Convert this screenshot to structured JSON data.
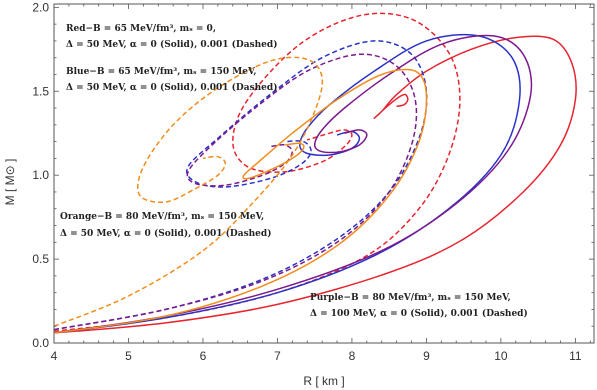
{
  "chart_data": {
    "type": "line",
    "xlabel": "R [ km ]",
    "ylabel": "M [ M⊙ ]",
    "xlim": [
      4,
      11.25
    ],
    "ylim": [
      0,
      2.02
    ],
    "xticks": [
      "4",
      "5",
      "6",
      "7",
      "8",
      "9",
      "10",
      "11"
    ],
    "yticks": [
      "0.0",
      "0.5",
      "1.0",
      "1.5",
      "2.0"
    ],
    "grid": false,
    "colors": {
      "red": "#e8242f",
      "blue": "#2a32c8",
      "orange": "#f28c1c",
      "purple": "#7b1a8e"
    },
    "annotations": [
      {
        "key": "red",
        "line1": "Red−B = 65 MeV/fm³, mₛ = 0,",
        "line2": "Δ = 50 MeV, α = 0 (Solid), 0.001 (Dashed)"
      },
      {
        "key": "blue",
        "line1": "Blue−B = 65 MeV/fm³, mₛ = 150 MeV,",
        "line2": "Δ = 50 MeV, α = 0 (Solid), 0.001 (Dashed)"
      },
      {
        "key": "orange",
        "line1": "Orange−B = 80 MeV/fm³, mₛ = 150 MeV,",
        "line2": "Δ = 50 MeV, α = 0 (Solid), 0.001 (Dashed)"
      },
      {
        "key": "purple",
        "line1": "Purple−B = 80 MeV/fm³, mₛ = 150 MeV,",
        "line2": "Δ = 100 MeV, α = 0 (Solid), 0.001 (Dashed)"
      }
    ],
    "series": [
      {
        "color": "red",
        "style": "solid",
        "x": [
          4.0,
          5.5,
          7.0,
          8.5,
          9.5,
          10.3,
          10.8,
          11.0,
          10.95,
          10.7,
          10.2,
          9.6,
          9.0,
          8.6,
          8.4,
          8.3,
          8.35,
          8.5,
          8.65,
          8.72,
          8.75,
          8.7,
          8.6
        ],
        "y": [
          0.06,
          0.12,
          0.23,
          0.42,
          0.62,
          0.9,
          1.18,
          1.45,
          1.67,
          1.81,
          1.82,
          1.75,
          1.62,
          1.48,
          1.38,
          1.34,
          1.36,
          1.42,
          1.47,
          1.48,
          1.45,
          1.42,
          1.41
        ]
      },
      {
        "color": "red",
        "style": "dashed",
        "x": [
          4.0,
          5.5,
          7.0,
          8.2,
          8.9,
          9.3,
          9.45,
          9.3,
          8.8,
          8.1,
          7.3,
          6.6,
          6.4,
          6.6,
          7.1,
          7.6,
          7.9,
          8.0,
          7.9,
          7.7,
          7.4
        ],
        "y": [
          0.07,
          0.15,
          0.3,
          0.52,
          0.8,
          1.12,
          1.45,
          1.73,
          1.93,
          1.95,
          1.78,
          1.45,
          1.2,
          1.05,
          1.02,
          1.08,
          1.17,
          1.24,
          1.27,
          1.25,
          1.21
        ]
      },
      {
        "color": "blue",
        "style": "solid",
        "x": [
          4.0,
          5.5,
          7.0,
          8.3,
          9.3,
          10.0,
          10.25,
          10.15,
          9.7,
          9.0,
          8.3,
          7.7,
          7.4,
          7.3,
          7.4,
          7.7,
          8.0,
          8.1,
          8.0,
          7.8
        ],
        "y": [
          0.06,
          0.15,
          0.3,
          0.52,
          0.8,
          1.12,
          1.45,
          1.7,
          1.83,
          1.8,
          1.62,
          1.42,
          1.28,
          1.18,
          1.13,
          1.12,
          1.16,
          1.22,
          1.26,
          1.24
        ]
      },
      {
        "color": "blue",
        "style": "dashed",
        "x": [
          4.0,
          5.5,
          6.8,
          7.8,
          8.5,
          8.9,
          9.0,
          8.8,
          8.3,
          7.6,
          6.9,
          6.2,
          5.8,
          5.9,
          6.3,
          6.9,
          7.3,
          7.45,
          7.35,
          7.1
        ],
        "y": [
          0.08,
          0.2,
          0.38,
          0.62,
          0.9,
          1.22,
          1.5,
          1.72,
          1.8,
          1.7,
          1.48,
          1.22,
          1.05,
          0.96,
          0.93,
          0.98,
          1.06,
          1.14,
          1.2,
          1.2
        ]
      },
      {
        "color": "purple",
        "style": "solid",
        "x": [
          4.0,
          5.5,
          7.0,
          8.4,
          9.4,
          10.1,
          10.4,
          10.3,
          9.9,
          9.2,
          8.5,
          7.9,
          7.6,
          7.5,
          7.6,
          7.85,
          8.1,
          8.2,
          8.1,
          7.9
        ],
        "y": [
          0.06,
          0.16,
          0.32,
          0.55,
          0.83,
          1.15,
          1.48,
          1.72,
          1.83,
          1.78,
          1.6,
          1.4,
          1.27,
          1.18,
          1.14,
          1.14,
          1.18,
          1.24,
          1.27,
          1.25
        ]
      },
      {
        "color": "purple",
        "style": "dashed",
        "x": [
          4.0,
          5.5,
          6.8,
          7.8,
          8.45,
          8.8,
          8.85,
          8.6,
          8.1,
          7.4,
          6.7,
          6.1,
          5.8,
          5.9,
          6.3,
          6.8,
          7.1,
          7.2,
          7.1,
          6.9
        ],
        "y": [
          0.08,
          0.2,
          0.37,
          0.6,
          0.87,
          1.18,
          1.45,
          1.65,
          1.72,
          1.62,
          1.4,
          1.17,
          1.02,
          0.95,
          0.94,
          1.0,
          1.07,
          1.14,
          1.18,
          1.17
        ]
      },
      {
        "color": "orange",
        "style": "solid",
        "x": [
          4.0,
          5.5,
          6.8,
          7.8,
          8.5,
          8.9,
          9.0,
          8.85,
          8.4,
          7.8,
          7.2,
          6.75,
          6.55,
          6.6,
          6.9,
          7.2,
          7.35,
          7.3,
          7.1
        ],
        "y": [
          0.06,
          0.16,
          0.34,
          0.58,
          0.88,
          1.2,
          1.48,
          1.62,
          1.6,
          1.45,
          1.25,
          1.08,
          1.0,
          0.98,
          1.03,
          1.1,
          1.16,
          1.19,
          1.18
        ]
      },
      {
        "color": "orange",
        "style": "dashed",
        "x": [
          4.0,
          5.0,
          6.0,
          6.7,
          7.2,
          7.5,
          7.6,
          7.4,
          6.9,
          6.2,
          5.6,
          5.2,
          5.15,
          5.5,
          5.9,
          6.2,
          6.3,
          6.2,
          6.0
        ],
        "y": [
          0.1,
          0.28,
          0.55,
          0.85,
          1.12,
          1.38,
          1.58,
          1.69,
          1.68,
          1.52,
          1.3,
          1.05,
          0.88,
          0.84,
          0.92,
          1.0,
          1.07,
          1.11,
          1.1
        ]
      }
    ]
  }
}
